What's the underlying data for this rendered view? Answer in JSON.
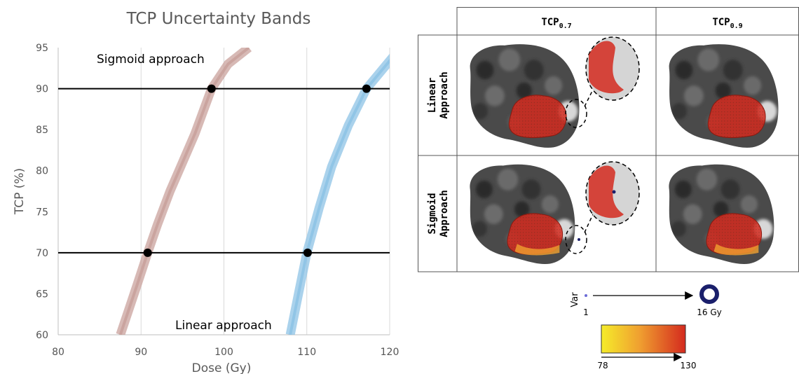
{
  "chart_data": {
    "type": "line",
    "title": "TCP Uncertainty Bands",
    "xlabel": "Dose (Gy)",
    "ylabel": "TCP (%)",
    "xlim": [
      80,
      120
    ],
    "ylim": [
      60,
      95
    ],
    "xticks": [
      80,
      90,
      100,
      110,
      120
    ],
    "yticks": [
      60,
      65,
      70,
      75,
      80,
      85,
      90,
      95
    ],
    "grid": "vertical",
    "series": [
      {
        "name": "Sigmoid approach",
        "color": "#c9a29c",
        "style": "uncertainty-band",
        "x": [
          87.5,
          88.5,
          89.5,
          90.8,
          92.0,
          93.5,
          95.0,
          96.5,
          98.5,
          100.5,
          103.0
        ],
        "y": [
          60,
          63,
          66,
          70,
          73.5,
          77.5,
          81,
          84.5,
          90,
          93,
          95
        ]
      },
      {
        "name": "Linear approach",
        "color": "#8ec3e6",
        "style": "uncertainty-band",
        "x": [
          108,
          109,
          110,
          111.5,
          113,
          115,
          117.2,
          120.5
        ],
        "y": [
          60,
          65,
          70,
          75.5,
          80.5,
          85.5,
          90,
          94
        ]
      }
    ],
    "reference_lines": [
      70,
      90
    ],
    "markers": [
      {
        "x": 90.8,
        "y": 70
      },
      {
        "x": 110.1,
        "y": 70
      },
      {
        "x": 98.5,
        "y": 90
      },
      {
        "x": 117.2,
        "y": 90
      }
    ],
    "annotations": [
      "Sigmoid approach",
      "Linear approach"
    ]
  },
  "map_grid": {
    "columns": [
      {
        "main": "TCP",
        "sub": "0.7"
      },
      {
        "main": "TCP",
        "sub": "0.9"
      }
    ],
    "rows": [
      {
        "line1": "Linear",
        "line2": "Approach"
      },
      {
        "line1": "Sigmoid",
        "line2": "Approach"
      }
    ]
  },
  "var_legend": {
    "label": "Var",
    "min": "1",
    "max": "16 Gy",
    "color": "#1a1f6b"
  },
  "dose_colorbar": {
    "min": "78",
    "max": "130",
    "colors": [
      "#f5ec2a",
      "#f0a030",
      "#d42a1e"
    ]
  }
}
